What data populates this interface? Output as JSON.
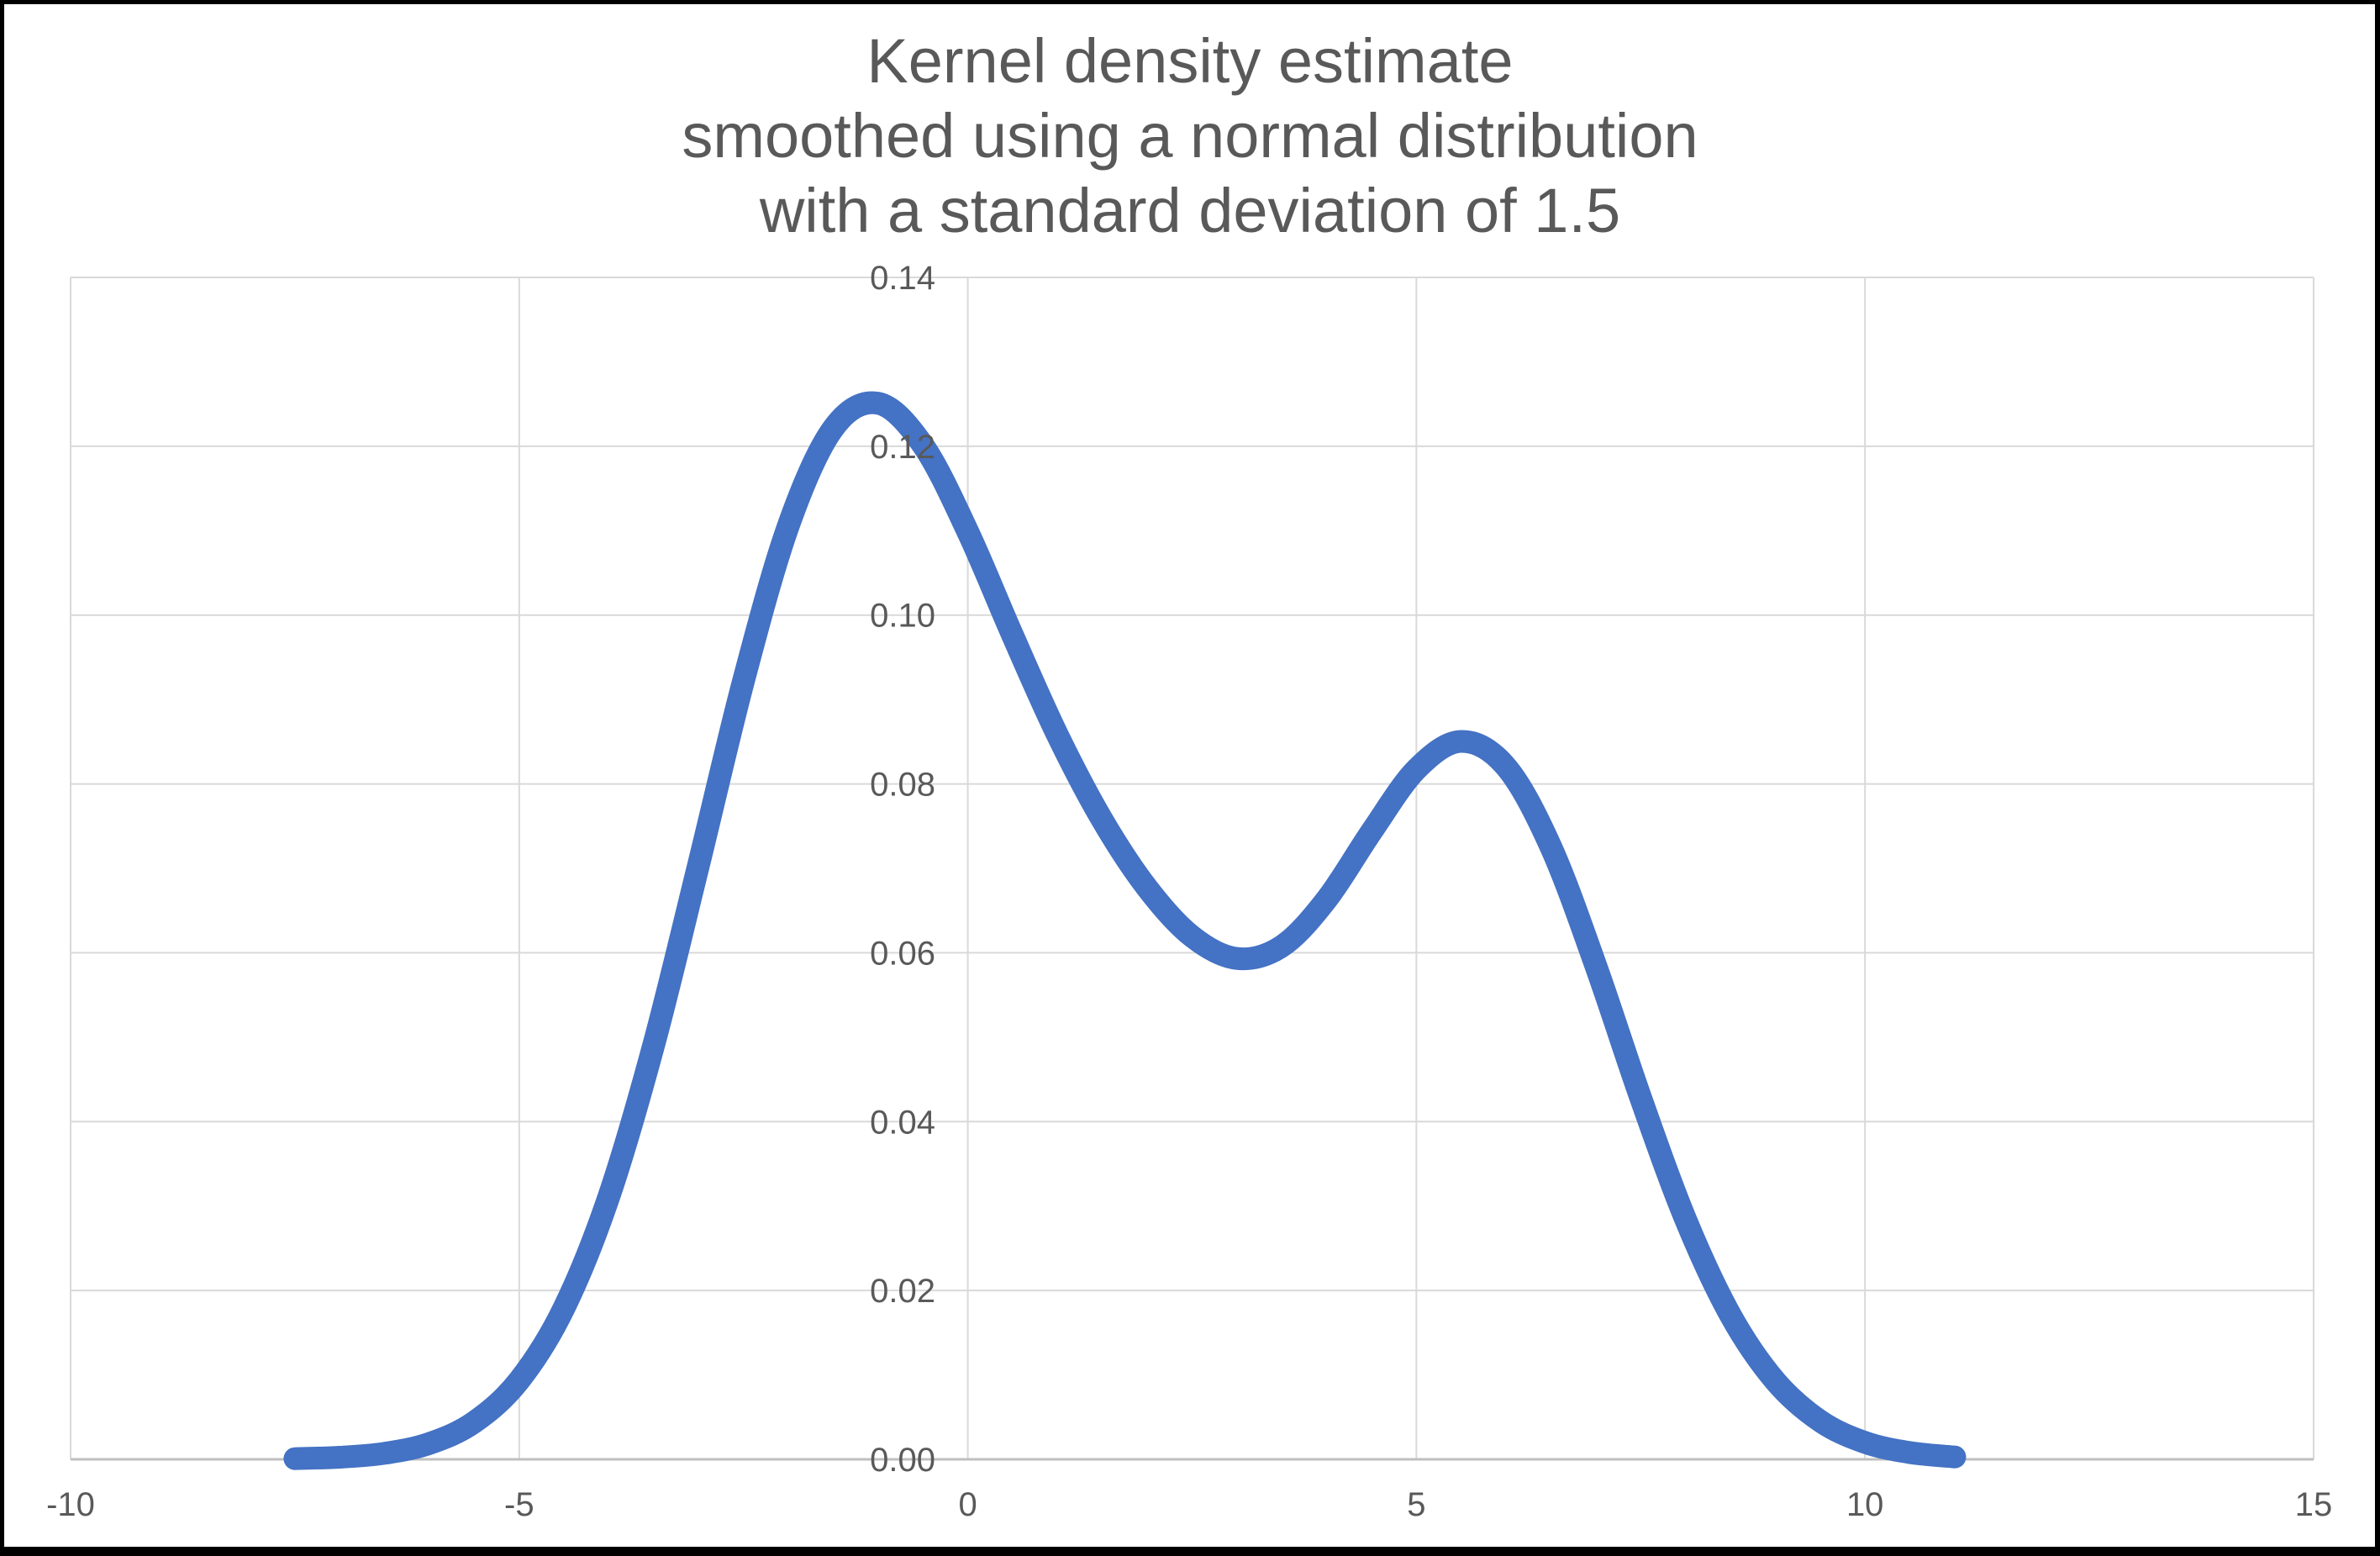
{
  "page": {
    "background": "#FFFFFF",
    "frame_color": "#000000"
  },
  "chart_data": {
    "type": "line",
    "title": [
      "Kernel density estimate",
      "smoothed using a normal distribution",
      "with a standard deviation of 1.5"
    ],
    "xlabel": "",
    "ylabel": "",
    "xlim": [
      -10,
      15
    ],
    "ylim": [
      0,
      0.14
    ],
    "x_ticks": [
      -10,
      -5,
      0,
      5,
      10,
      15
    ],
    "x_tick_labels": [
      "-10",
      "-5",
      "0",
      "5",
      "10",
      "15"
    ],
    "y_ticks": [
      0,
      0.02,
      0.04,
      0.06,
      0.08,
      0.1,
      0.12,
      0.14
    ],
    "y_tick_labels": [
      "0.00",
      "0.02",
      "0.04",
      "0.06",
      "0.08",
      "0.10",
      "0.12",
      "0.14"
    ],
    "grid": true,
    "legend": false,
    "colors": {
      "line": "#4472C4",
      "gridline": "#D9D9D9",
      "axis_line": "#BFBFBF",
      "text": "#595959"
    },
    "line_width": 27,
    "series": [
      {
        "x": [
          -7.5,
          -7.0,
          -6.5,
          -6.0,
          -5.5,
          -5.0,
          -4.5,
          -4.0,
          -3.5,
          -3.0,
          -2.5,
          -2.0,
          -1.5,
          -1.0,
          -0.5,
          0.0,
          0.5,
          1.0,
          1.5,
          2.0,
          2.5,
          3.0,
          3.5,
          4.0,
          4.5,
          5.0,
          5.5,
          6.0,
          6.5,
          7.0,
          7.5,
          8.0,
          8.5,
          9.0,
          9.5,
          10.0,
          10.5,
          11.0
        ],
        "y": [
          8e-05,
          0.00025,
          0.00072,
          0.00188,
          0.00441,
          0.00935,
          0.01794,
          0.03115,
          0.0491,
          0.07043,
          0.0922,
          0.11059,
          0.12213,
          0.12509,
          0.12014,
          0.10988,
          0.09758,
          0.08578,
          0.07572,
          0.06767,
          0.06193,
          0.05933,
          0.06078,
          0.06633,
          0.07435,
          0.08173,
          0.08504,
          0.08202,
          0.07252,
          0.05846,
          0.04282,
          0.02843,
          0.01708,
          0.00928,
          0.00454,
          0.002,
          0.0008,
          0.00028
        ]
      }
    ]
  }
}
